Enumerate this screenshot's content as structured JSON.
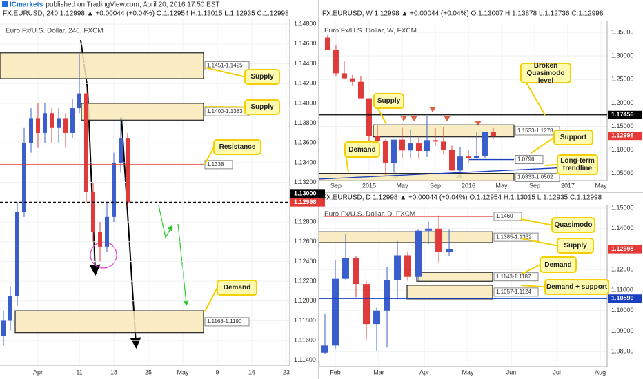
{
  "header": {
    "publisher": "ICmarkets",
    "text": "published on TradingView.com, April 20, 2016 17:50 EST"
  },
  "chart_data": [
    {
      "type": "candlestick",
      "info": "FX:EURUSD, 240  1.12998 ▲ +0.00044 (+0.04%) O:1.12954 H:1.13015 L:1.12935 C:1.12998",
      "title": "Euro Fx/U.S. Dollar, 240, FXCM",
      "x": [
        -5,
        -4,
        -3,
        -2,
        -1,
        0,
        1,
        2,
        3,
        4,
        5,
        6,
        7,
        8,
        9,
        10,
        11,
        12,
        13
      ],
      "open": [
        1.1165,
        1.118,
        1.1205,
        1.129,
        1.136,
        1.1385,
        1.137,
        1.139,
        1.1375,
        1.1385,
        1.137,
        1.1395,
        1.141,
        1.131,
        1.127,
        1.1255,
        1.1285,
        1.134,
        1.1365
      ],
      "high": [
        1.119,
        1.1215,
        1.13,
        1.1375,
        1.1395,
        1.14,
        1.14,
        1.1395,
        1.1395,
        1.139,
        1.1405,
        1.145,
        1.1415,
        1.132,
        1.128,
        1.13,
        1.135,
        1.1385,
        1.137
      ],
      "low": [
        1.1155,
        1.117,
        1.1195,
        1.1285,
        1.135,
        1.1355,
        1.136,
        1.136,
        1.136,
        1.1355,
        1.1365,
        1.139,
        1.13,
        1.126,
        1.124,
        1.125,
        1.128,
        1.133,
        1.1295
      ],
      "close": [
        1.118,
        1.1205,
        1.129,
        1.136,
        1.1385,
        1.137,
        1.139,
        1.1375,
        1.1385,
        1.137,
        1.1395,
        1.141,
        1.131,
        1.127,
        1.1255,
        1.1285,
        1.134,
        1.1365,
        1.12998
      ],
      "up_color": "#3a5fcd",
      "down_color": "#e03b3b",
      "xlim": [
        -5.5,
        36.5
      ],
      "xticks": [
        {
          "value": 0,
          "label": "Apr"
        },
        {
          "value": 6,
          "label": "11"
        },
        {
          "value": 11,
          "label": "18"
        },
        {
          "value": 16,
          "label": "25"
        },
        {
          "value": 21,
          "label": "May"
        },
        {
          "value": 26,
          "label": "9"
        },
        {
          "value": 31,
          "label": "16"
        },
        {
          "value": 36,
          "label": "23"
        }
      ],
      "ylim": [
        1.1135,
        1.1485
      ],
      "yticks": [
        {
          "value": 1.148,
          "label": "1.14800"
        },
        {
          "value": 1.146,
          "label": "1.14600"
        },
        {
          "value": 1.144,
          "label": "1.14400"
        },
        {
          "value": 1.142,
          "label": "1.14200"
        },
        {
          "value": 1.14,
          "label": "1.14000"
        },
        {
          "value": 1.138,
          "label": "1.13800"
        },
        {
          "value": 1.136,
          "label": "1.13600"
        },
        {
          "value": 1.134,
          "label": "1.13400"
        },
        {
          "value": 1.132,
          "label": "1.13200"
        },
        {
          "value": 1.128,
          "label": "1.12800"
        },
        {
          "value": 1.126,
          "label": "1.12600"
        },
        {
          "value": 1.124,
          "label": "1.12400"
        },
        {
          "value": 1.122,
          "label": "1.12200"
        },
        {
          "value": 1.12,
          "label": "1.12000"
        },
        {
          "value": 1.118,
          "label": "1.11800"
        },
        {
          "value": 1.116,
          "label": "1.11600"
        },
        {
          "value": 1.114,
          "label": "1.11400"
        }
      ],
      "grid": true,
      "zones": [
        {
          "label": "1.1451-1.1425",
          "low": 1.1425,
          "high": 1.1451
        },
        {
          "label": "1.1400-1.1383",
          "low": 1.1383,
          "high": 1.14
        },
        {
          "label": "1.1168-1.1190",
          "low": 1.1168,
          "high": 1.119
        }
      ],
      "lines": [
        {
          "label": "1.1338",
          "value": 1.1338,
          "color": "#e53935"
        },
        {
          "label": "1.13000",
          "value": 1.13,
          "color": "#000000",
          "dashed": true
        }
      ],
      "last": {
        "value": 1.12998,
        "label": "1.12998",
        "color": "#e53935"
      },
      "callouts": [
        "Supply",
        "Supply",
        "Resistance",
        "Demand"
      ]
    },
    {
      "type": "candlestick",
      "info": "FX:EURUSD, W  1.12998 ▲ +0.00044 (+0.04%) O:1.13007 H:1.13878 L:1.12736 C:1.12998",
      "title": "Euro Fx/U.S. Dollar, W, FXCM",
      "x": [
        -1,
        0,
        1,
        2,
        3,
        4,
        5,
        6,
        7,
        8,
        9,
        10,
        11,
        12,
        13,
        14,
        15,
        16,
        17,
        18,
        19
      ],
      "open": [
        1.339,
        1.313,
        1.263,
        1.2525,
        1.245,
        1.21,
        1.129,
        1.1195,
        1.073,
        1.122,
        1.099,
        1.114,
        1.098,
        1.121,
        1.118,
        1.1,
        1.0565,
        1.086,
        1.083,
        1.087,
        1.138
      ],
      "high": [
        1.3445,
        1.322,
        1.289,
        1.26,
        1.257,
        1.21,
        1.153,
        1.124,
        1.122,
        1.147,
        1.144,
        1.128,
        1.1715,
        1.146,
        1.1495,
        1.109,
        1.106,
        1.099,
        1.1375,
        1.139,
        1.1465
      ],
      "low": [
        1.313,
        1.257,
        1.25,
        1.236,
        1.21,
        1.11,
        1.11,
        1.046,
        1.052,
        1.082,
        1.082,
        1.081,
        1.085,
        1.109,
        1.09,
        1.056,
        1.052,
        1.071,
        1.081,
        1.082,
        1.1235
      ],
      "close": [
        1.313,
        1.263,
        1.2525,
        1.245,
        1.21,
        1.129,
        1.1195,
        1.073,
        1.122,
        1.099,
        1.114,
        1.098,
        1.121,
        1.118,
        1.1,
        1.0565,
        1.086,
        1.083,
        1.087,
        1.138,
        1.12998
      ],
      "up_color": "#3a5fcd",
      "down_color": "#e03b3b",
      "xlim": [
        -2.08,
        32.75
      ],
      "xticks": [
        {
          "value": 0,
          "label": "Sep"
        },
        {
          "value": 4,
          "label": "2015"
        },
        {
          "value": 8,
          "label": "May"
        },
        {
          "value": 12,
          "label": "Sep"
        },
        {
          "value": 16,
          "label": "2016"
        },
        {
          "value": 20,
          "label": "May"
        },
        {
          "value": 24,
          "label": "Sep"
        },
        {
          "value": 28,
          "label": "2017"
        },
        {
          "value": 32,
          "label": "May"
        }
      ],
      "ylim": [
        1.035,
        1.375
      ],
      "yticks": [
        {
          "value": 1.35,
          "label": "1.35000"
        },
        {
          "value": 1.3,
          "label": "1.30000"
        },
        {
          "value": 1.25,
          "label": "1.25000"
        },
        {
          "value": 1.2,
          "label": "1.20000"
        },
        {
          "value": 1.15,
          "label": "1.15000"
        },
        {
          "value": 1.1,
          "label": "1.10000"
        },
        {
          "value": 1.05,
          "label": "1.05000"
        }
      ],
      "grid": true,
      "zones": [
        {
          "label": "1.1533-1.1278",
          "low": 1.1278,
          "high": 1.1533
        },
        {
          "label": "1.0333-1.0502",
          "low": 1.0333,
          "high": 1.0502
        }
      ],
      "lines": [
        {
          "label": "1.17456",
          "value": 1.17456,
          "color": "#000000"
        },
        {
          "label": "1.0796",
          "value": 1.0796,
          "color": "#1a3fbf"
        }
      ],
      "trendline": {
        "values": [
          1.038,
          1.062
        ],
        "color": "#1a3fbf"
      },
      "last": {
        "value": 1.12998,
        "label": "1.12998",
        "color": "#e53935"
      },
      "callouts": [
        "Broken Quasimodo level",
        "Supply",
        "Support",
        "Demand",
        "Long-term trendline"
      ]
    },
    {
      "type": "candlestick",
      "info": "FX:EURUSD, D  1.12998 ▲ +0.00044 (+0.04%) O:1.12954 H:1.13015 L:1.12935 C:1.12998",
      "title": "Euro Fx/U.S. Dollar, D, FXCM",
      "x": [
        -5,
        0,
        5,
        10,
        15,
        20,
        25,
        30,
        35,
        40,
        45,
        50,
        55
      ],
      "open": [
        1.0795,
        1.083,
        1.1155,
        1.1255,
        1.113,
        1.0935,
        1.1,
        1.115,
        1.127,
        1.1165,
        1.139,
        1.14,
        1.1285
      ],
      "high": [
        1.0985,
        1.1245,
        1.1375,
        1.1265,
        1.1145,
        1.1015,
        1.1215,
        1.134,
        1.129,
        1.1395,
        1.1435,
        1.1465,
        1.1395
      ],
      "low": [
        1.079,
        1.081,
        1.115,
        1.1065,
        1.086,
        1.0805,
        1.082,
        1.1055,
        1.1145,
        1.1145,
        1.1325,
        1.1235,
        1.1265
      ],
      "close": [
        1.083,
        1.1155,
        1.1255,
        1.113,
        1.0935,
        1.1,
        1.115,
        1.127,
        1.1165,
        1.139,
        1.14,
        1.1285,
        1.12998
      ],
      "up_color": "#3a5fcd",
      "down_color": "#e03b3b",
      "xlim": [
        -8,
        131.3
      ],
      "xticks": [
        {
          "value": 0,
          "label": "Feb"
        },
        {
          "value": 21,
          "label": "Mar"
        },
        {
          "value": 43,
          "label": "Apr"
        },
        {
          "value": 64,
          "label": "May"
        },
        {
          "value": 85,
          "label": "Jun"
        },
        {
          "value": 107,
          "label": "Jul"
        },
        {
          "value": 128,
          "label": "Aug"
        }
      ],
      "ylim": [
        1.0727,
        1.1517
      ],
      "yticks": [
        {
          "value": 1.15,
          "label": "1.15000"
        },
        {
          "value": 1.14,
          "label": "1.14000"
        },
        {
          "value": 1.12,
          "label": "1.12000"
        },
        {
          "value": 1.11,
          "label": "1.11000"
        },
        {
          "value": 1.1,
          "label": "1.10000"
        },
        {
          "value": 1.09,
          "label": "1.09000"
        },
        {
          "value": 1.08,
          "label": "1.08000"
        }
      ],
      "grid": true,
      "zones": [
        {
          "label": "1.1385-1.1332",
          "low": 1.1332,
          "high": 1.1385
        },
        {
          "label": "1.1143-1.1187",
          "low": 1.1143,
          "high": 1.1187
        },
        {
          "label": "1.1057-1.1124",
          "low": 1.1057,
          "high": 1.1124
        }
      ],
      "lines": [
        {
          "label": "1.1460",
          "value": 1.146,
          "color": "#e53935"
        },
        {
          "label": "1.10590",
          "value": 1.1059,
          "color": "#1a3fbf"
        }
      ],
      "last": {
        "value": 1.12998,
        "label": "1.12998",
        "color": "#e53935"
      },
      "callouts": [
        "Quasimodo",
        "Supply",
        "Demand",
        "Demand + support"
      ]
    }
  ]
}
